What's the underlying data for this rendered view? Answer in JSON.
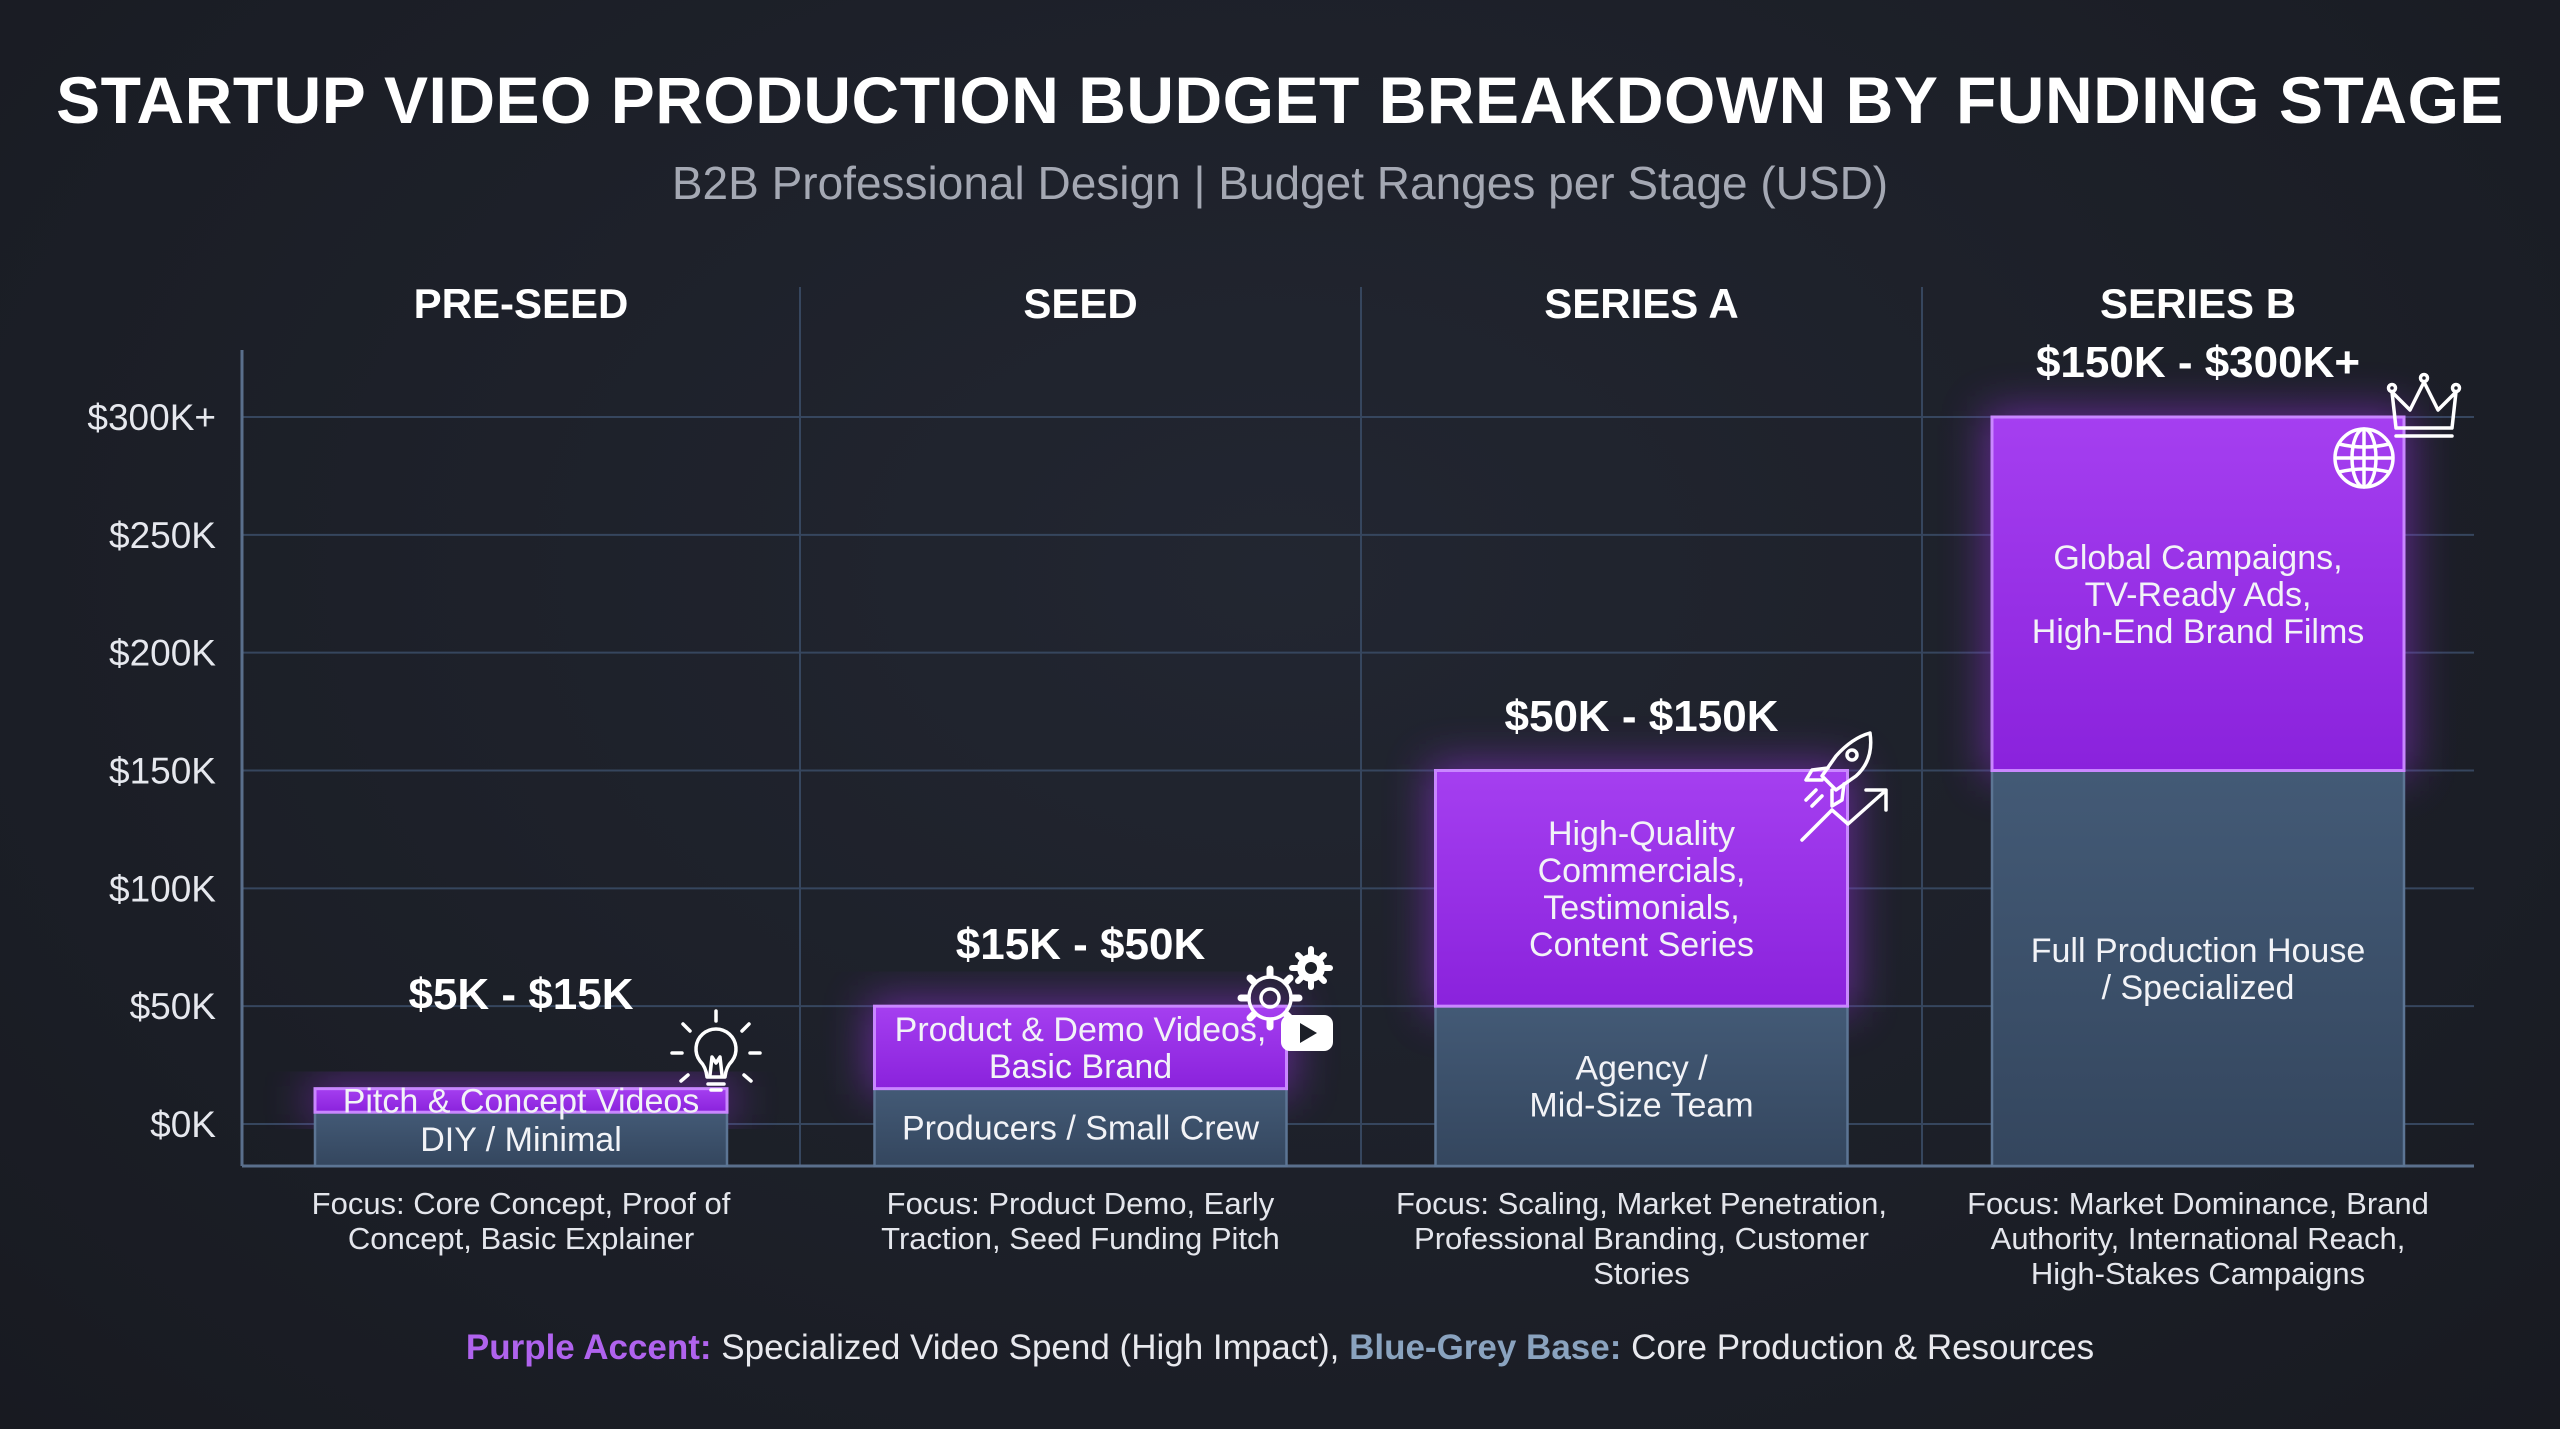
{
  "title": "STARTUP VIDEO PRODUCTION BUDGET BREAKDOWN BY FUNDING STAGE",
  "subtitle": "B2B Professional Design | Budget Ranges per Stage (USD)",
  "legend": {
    "purple_label": "Purple Accent:",
    "purple_text": " Specialized Video Spend (High Impact), ",
    "base_label": "Blue-Grey Base:",
    "base_text": " Core Production & Resources"
  },
  "colors": {
    "accent": "#9b30e8",
    "accent_light": "#b063ee",
    "base": "#3f5570",
    "grid": "#3a4a62",
    "background": "#1c1f27"
  },
  "chart_data": {
    "type": "bar",
    "stacked": true,
    "y_tick_labels": [
      "$0K",
      "$50K",
      "$100K",
      "$150K",
      "$200K",
      "$250K",
      "$300K+"
    ],
    "y_tick_values": [
      0,
      50,
      100,
      150,
      200,
      250,
      300
    ],
    "ylim": [
      -20,
      300
    ],
    "grid": true,
    "categories": [
      "PRE-SEED",
      "SEED",
      "SERIES A",
      "SERIES B"
    ],
    "ranges": [
      "$5K - $15K",
      "$15K - $50K",
      "$50K - $150K",
      "$150K - $300K+"
    ],
    "icons": [
      "lightbulb-icon",
      "gear-youtube-icon",
      "rocket-growth-icon",
      "crown-globe-icon"
    ],
    "series": [
      {
        "name": "Blue-Grey Base: Core Production & Resources",
        "color": "#3f5570",
        "bottom": [
          -20,
          -20,
          -20,
          -20
        ],
        "top": [
          5,
          15,
          50,
          150
        ],
        "labels": [
          "DIY / Minimal",
          "Producers / Small Crew",
          "Agency /\nMid-Size Team",
          "Full Production House\n/ Specialized"
        ]
      },
      {
        "name": "Purple Accent: Specialized Video Spend (High Impact)",
        "color": "#9b30e8",
        "bottom": [
          5,
          15,
          50,
          150
        ],
        "top": [
          15,
          50,
          150,
          300
        ],
        "labels": [
          "Pitch & Concept Videos",
          "Product & Demo Videos,\nBasic Brand",
          "High-Quality\nCommercials,\nTestimonials,\nContent Series",
          "Global Campaigns,\nTV-Ready Ads,\nHigh-End Brand Films"
        ]
      }
    ],
    "focus": [
      "Focus: Core Concept, Proof of\nConcept, Basic Explainer",
      "Focus: Product Demo, Early\nTraction, Seed Funding Pitch",
      "Focus: Scaling, Market Penetration,\nProfessional Branding, Customer\nStories",
      "Focus: Market Dominance, Brand\nAuthority, International Reach,\nHigh-Stakes Campaigns"
    ]
  }
}
